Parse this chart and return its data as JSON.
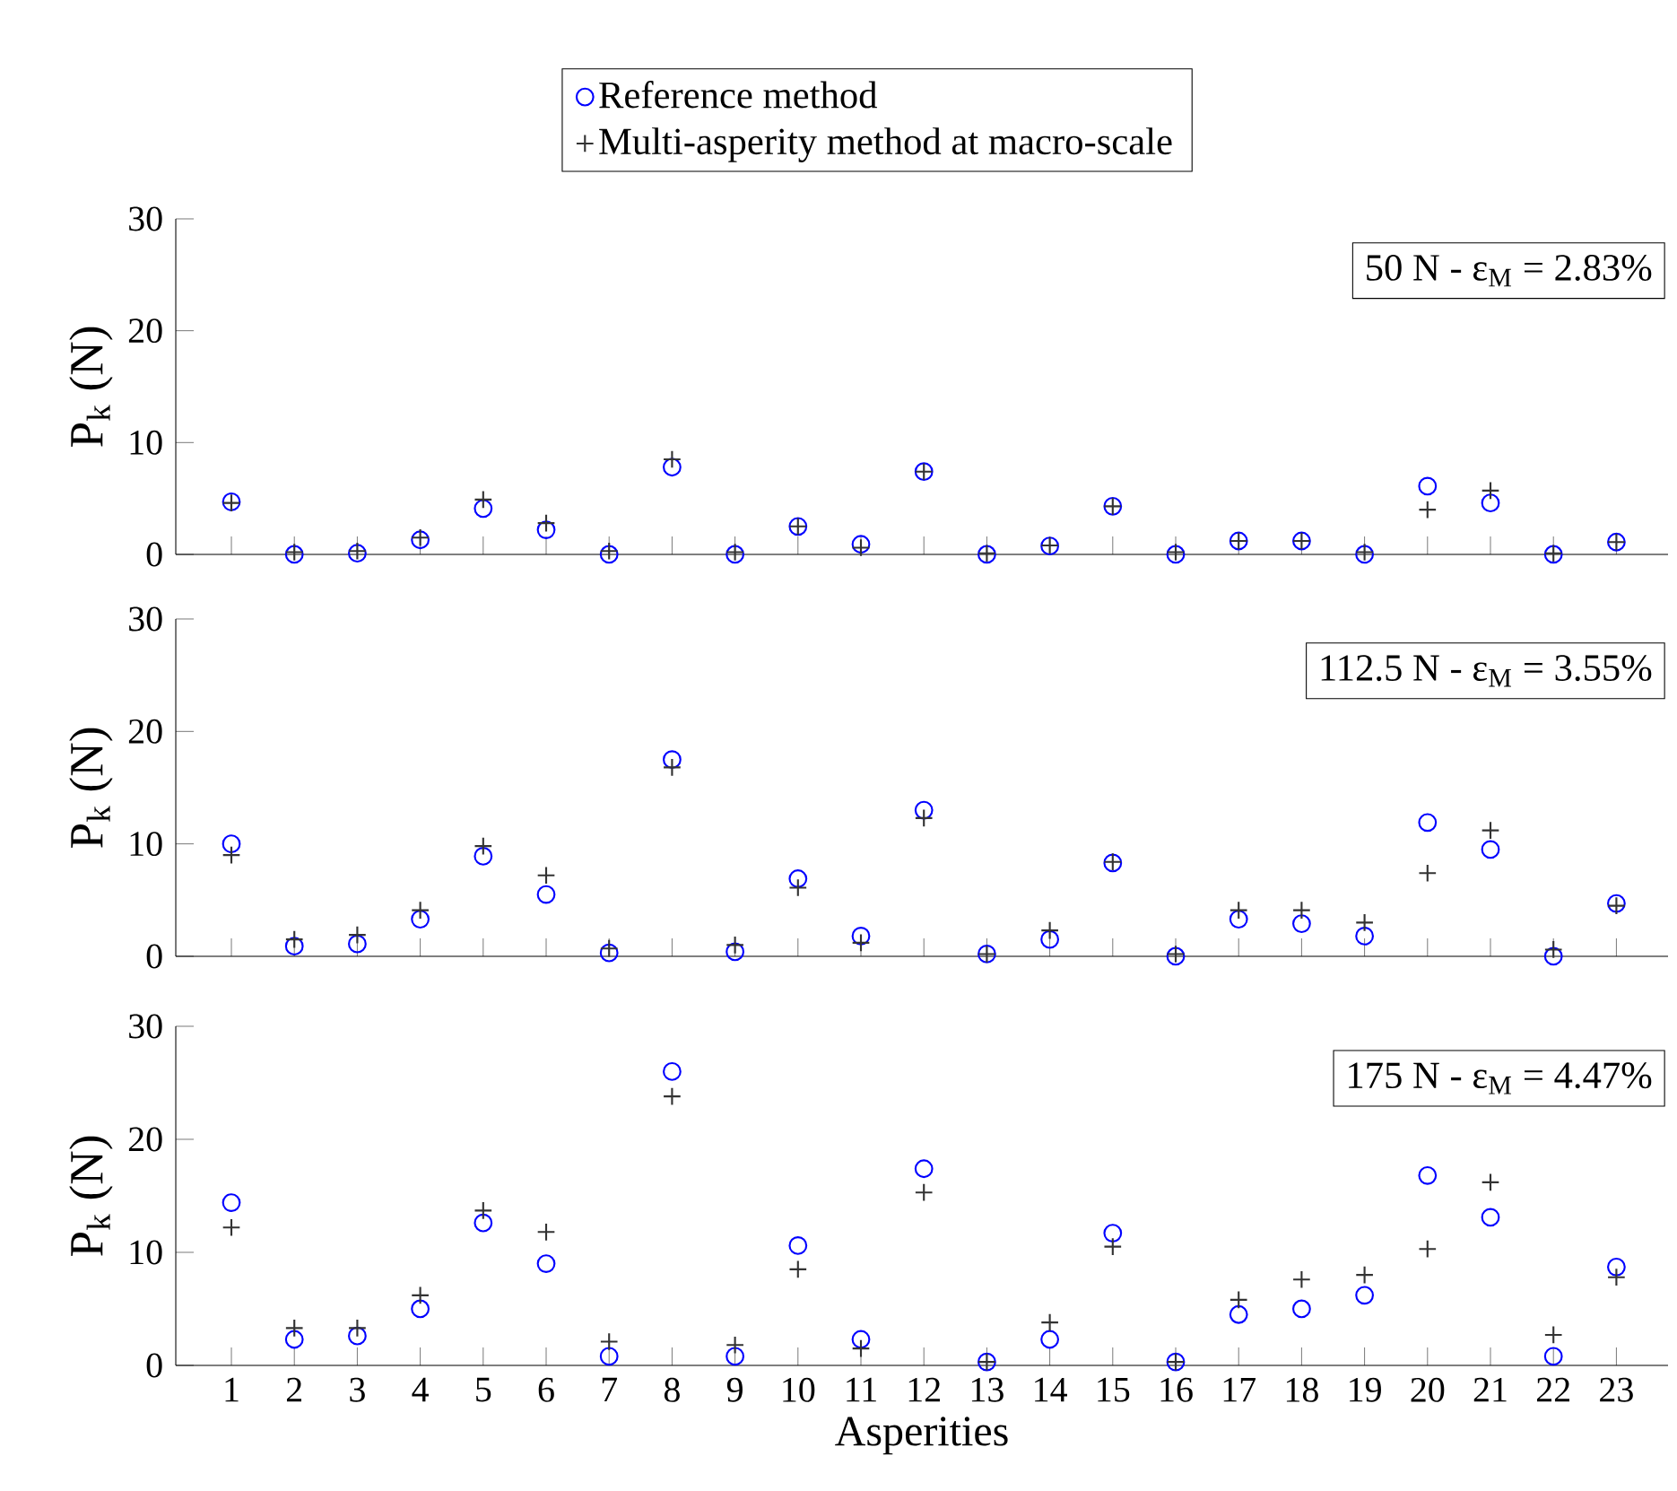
{
  "chart_data": [
    {
      "type": "scatter",
      "ylabel": "P$_{k}$ (N)",
      "annotations": [
        "50 N - ε$_{M}$ = 2.83%"
      ],
      "categories": [
        "1",
        "2",
        "3",
        "4",
        "5",
        "6",
        "7",
        "8",
        "9",
        "10",
        "11",
        "12",
        "13",
        "14",
        "15",
        "16",
        "17",
        "18",
        "19",
        "20",
        "21",
        "22",
        "23"
      ],
      "ylim": [
        0,
        30
      ],
      "yticks": [
        0,
        10,
        20,
        30
      ],
      "tick_labels": "y",
      "legend": "top",
      "grid": false,
      "series": [
        {
          "name": "Reference method",
          "color": "#0000ff",
          "marker": "circle",
          "values": [
            4.7,
            0,
            0.1,
            1.3,
            4.1,
            2.2,
            0,
            7.8,
            0,
            2.5,
            0.9,
            7.4,
            0,
            0.75,
            4.3,
            0,
            1.2,
            1.2,
            0,
            6.1,
            4.6,
            0,
            1.1
          ]
        },
        {
          "name": "Multi-asperity method at macro-scale",
          "color": "#333333",
          "marker": "cross",
          "values": [
            4.6,
            0.2,
            0.3,
            1.5,
            4.9,
            2.8,
            0.3,
            8.5,
            0.2,
            2.5,
            0.6,
            7.4,
            0.1,
            0.8,
            4.3,
            0.2,
            1.2,
            1.2,
            0.2,
            4.0,
            5.7,
            0.1,
            1.1
          ]
        }
      ]
    },
    {
      "type": "scatter",
      "ylabel": "P$_{k}$ (N)",
      "annotations": [
        "112.5 N - ε$_{M}$ = 3.55%"
      ],
      "categories": [
        "1",
        "2",
        "3",
        "4",
        "5",
        "6",
        "7",
        "8",
        "9",
        "10",
        "11",
        "12",
        "13",
        "14",
        "15",
        "16",
        "17",
        "18",
        "19",
        "20",
        "21",
        "22",
        "23"
      ],
      "ylim": [
        0,
        30
      ],
      "yticks": [
        0,
        10,
        20,
        30
      ],
      "tick_labels": "y",
      "grid": false,
      "series": [
        {
          "color": "#0000ff",
          "marker": "circle",
          "values": [
            10.0,
            0.9,
            1.1,
            3.3,
            8.9,
            5.5,
            0.3,
            17.5,
            0.4,
            6.9,
            1.8,
            13.0,
            0.2,
            1.5,
            8.3,
            0,
            3.3,
            2.9,
            1.8,
            11.9,
            9.5,
            0,
            4.7
          ]
        },
        {
          "color": "#333333",
          "marker": "cross",
          "values": [
            9.0,
            1.5,
            1.9,
            4.1,
            9.8,
            7.2,
            0.7,
            16.8,
            1.0,
            6.1,
            1.2,
            12.3,
            0.2,
            2.3,
            8.4,
            0.2,
            4.1,
            4.1,
            3.0,
            7.4,
            11.2,
            0.6,
            4.5
          ]
        }
      ]
    },
    {
      "type": "scatter",
      "ylabel": "P$_{k}$ (N)",
      "xlabel": "Asperities",
      "annotations": [
        "175 N - ε$_{M}$ = 4.47%"
      ],
      "categories": [
        "1",
        "2",
        "3",
        "4",
        "5",
        "6",
        "7",
        "8",
        "9",
        "10",
        "11",
        "12",
        "13",
        "14",
        "15",
        "16",
        "17",
        "18",
        "19",
        "20",
        "21",
        "22",
        "23"
      ],
      "ylim": [
        0,
        30
      ],
      "yticks": [
        0,
        10,
        20,
        30
      ],
      "grid": false,
      "series": [
        {
          "color": "#0000ff",
          "marker": "circle",
          "values": [
            14.4,
            2.3,
            2.6,
            5.0,
            12.6,
            9.0,
            0.8,
            26.0,
            0.8,
            10.6,
            2.3,
            17.4,
            0.3,
            2.3,
            11.7,
            0.3,
            4.5,
            5.0,
            6.2,
            16.8,
            13.1,
            0.8,
            8.7
          ]
        },
        {
          "color": "#333333",
          "marker": "cross",
          "values": [
            12.2,
            3.3,
            3.3,
            6.2,
            13.7,
            11.8,
            2.1,
            23.8,
            1.8,
            8.5,
            1.5,
            15.3,
            0.3,
            3.8,
            10.5,
            0.3,
            5.8,
            7.6,
            8.0,
            10.3,
            16.2,
            2.7,
            7.8
          ]
        }
      ]
    }
  ]
}
